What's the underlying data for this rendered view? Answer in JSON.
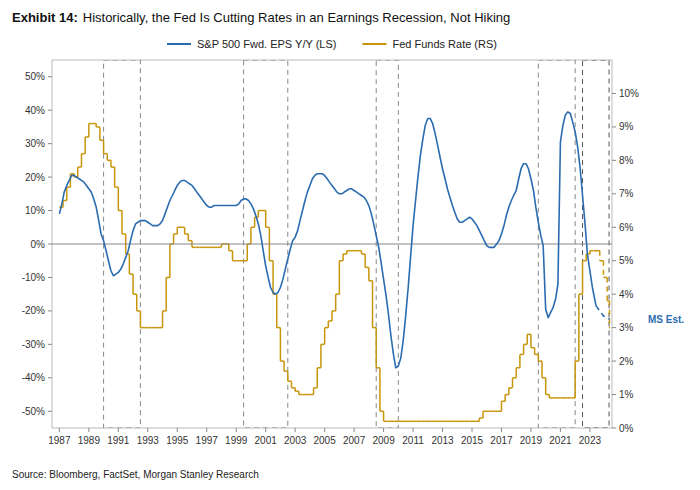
{
  "chart_data": {
    "type": "line",
    "title": "Exhibit 14:",
    "subtitle": "Historically, the Fed Is Cutting Rates in an Earnings Recession, Not Hiking",
    "source": "Source: Bloomberg, FactSet, Morgan Stanley Research",
    "annotations": [
      "MS Est."
    ],
    "legend": "top",
    "grid": false,
    "xlim": [
      1986.5,
      2024.5
    ],
    "xticks": [
      1987,
      1989,
      1991,
      1993,
      1995,
      1997,
      1999,
      2001,
      2003,
      2005,
      2007,
      2009,
      2011,
      2013,
      2015,
      2017,
      2019,
      2021,
      2023
    ],
    "ylim": [
      -0.55,
      0.55
    ],
    "yticks": [
      {
        "value": -0.5,
        "label": "-50%"
      },
      {
        "value": -0.4,
        "label": "-40%"
      },
      {
        "value": -0.3,
        "label": "-30%"
      },
      {
        "value": -0.2,
        "label": "-20%"
      },
      {
        "value": -0.1,
        "label": "-10%"
      },
      {
        "value": 0.0,
        "label": "0%"
      },
      {
        "value": 0.1,
        "label": "10%"
      },
      {
        "value": 0.2,
        "label": "20%"
      },
      {
        "value": 0.3,
        "label": "30%"
      },
      {
        "value": 0.4,
        "label": "40%"
      },
      {
        "value": 0.5,
        "label": "50%"
      }
    ],
    "y2lim": [
      0.0,
      0.11
    ],
    "y2ticks": [
      {
        "value": 0.0,
        "label": "0%"
      },
      {
        "value": 0.01,
        "label": "1%"
      },
      {
        "value": 0.02,
        "label": "2%"
      },
      {
        "value": 0.03,
        "label": "3%"
      },
      {
        "value": 0.04,
        "label": "4%"
      },
      {
        "value": 0.05,
        "label": "5%"
      },
      {
        "value": 0.06,
        "label": "6%"
      },
      {
        "value": 0.07,
        "label": "7%"
      },
      {
        "value": 0.08,
        "label": "8%"
      },
      {
        "value": 0.09,
        "label": "9%"
      },
      {
        "value": 0.1,
        "label": "10%"
      }
    ],
    "hline": {
      "value": 0.0,
      "color": "#888888"
    },
    "boxes": [
      {
        "from": 1990.0,
        "to": 1992.5,
        "color": "#888888",
        "line_style": "dashed"
      },
      {
        "from": 1999.5,
        "to": 2002.5,
        "color": "#888888",
        "line_style": "dashed"
      },
      {
        "from": 2008.5,
        "to": 2010.0,
        "color": "#888888",
        "line_style": "dashed"
      },
      {
        "from": 2019.5,
        "to": 2022.0,
        "color": "#888888",
        "line_style": "dashed"
      },
      {
        "from": 2022.5,
        "to": 2024.3,
        "color": "#555555",
        "line_style": "dashed"
      }
    ],
    "series": [
      {
        "name": "S&P 500 Fwd. EPS Y/Y (LS)",
        "type": "line",
        "axis": "y",
        "color": "#2b6cb0",
        "line_style": "solid",
        "x": [
          1987.0,
          1987.17,
          1987.33,
          1987.5,
          1987.67,
          1987.83,
          1988.0,
          1988.17,
          1988.33,
          1988.5,
          1988.67,
          1988.83,
          1989.0,
          1989.17,
          1989.33,
          1989.5,
          1989.67,
          1989.83,
          1990.0,
          1990.17,
          1990.33,
          1990.5,
          1990.67,
          1990.83,
          1991.0,
          1991.17,
          1991.33,
          1991.5,
          1991.67,
          1991.83,
          1992.0,
          1992.17,
          1992.33,
          1992.5,
          1992.67,
          1992.83,
          1993.0,
          1993.17,
          1993.33,
          1993.5,
          1993.67,
          1993.83,
          1994.0,
          1994.17,
          1994.33,
          1994.5,
          1994.67,
          1994.83,
          1995.0,
          1995.17,
          1995.33,
          1995.5,
          1995.67,
          1995.83,
          1996.0,
          1996.17,
          1996.33,
          1996.5,
          1996.67,
          1996.83,
          1997.0,
          1997.17,
          1997.33,
          1997.5,
          1997.67,
          1997.83,
          1998.0,
          1998.17,
          1998.33,
          1998.5,
          1998.67,
          1998.83,
          1999.0,
          1999.17,
          1999.33,
          1999.5,
          1999.67,
          1999.83,
          2000.0,
          2000.17,
          2000.33,
          2000.5,
          2000.67,
          2000.83,
          2001.0,
          2001.17,
          2001.33,
          2001.5,
          2001.67,
          2001.83,
          2002.0,
          2002.17,
          2002.33,
          2002.5,
          2002.67,
          2002.83,
          2003.0,
          2003.17,
          2003.33,
          2003.5,
          2003.67,
          2003.83,
          2004.0,
          2004.17,
          2004.33,
          2004.5,
          2004.67,
          2004.83,
          2005.0,
          2005.17,
          2005.33,
          2005.5,
          2005.67,
          2005.83,
          2006.0,
          2006.17,
          2006.33,
          2006.5,
          2006.67,
          2006.83,
          2007.0,
          2007.17,
          2007.33,
          2007.5,
          2007.67,
          2007.83,
          2008.0,
          2008.17,
          2008.33,
          2008.5,
          2008.67,
          2008.83,
          2009.0,
          2009.17,
          2009.33,
          2009.5,
          2009.67,
          2009.83,
          2010.0,
          2010.17,
          2010.33,
          2010.5,
          2010.67,
          2010.83,
          2011.0,
          2011.17,
          2011.33,
          2011.5,
          2011.67,
          2011.83,
          2012.0,
          2012.17,
          2012.33,
          2012.5,
          2012.67,
          2012.83,
          2013.0,
          2013.17,
          2013.33,
          2013.5,
          2013.67,
          2013.83,
          2014.0,
          2014.17,
          2014.33,
          2014.5,
          2014.67,
          2014.83,
          2015.0,
          2015.17,
          2015.33,
          2015.5,
          2015.67,
          2015.83,
          2016.0,
          2016.17,
          2016.33,
          2016.5,
          2016.67,
          2016.83,
          2017.0,
          2017.17,
          2017.33,
          2017.5,
          2017.67,
          2017.83,
          2018.0,
          2018.17,
          2018.33,
          2018.5,
          2018.67,
          2018.83,
          2019.0,
          2019.17,
          2019.33,
          2019.5,
          2019.67,
          2019.83,
          2020.0,
          2020.17,
          2020.33,
          2020.5,
          2020.67,
          2020.83,
          2021.0,
          2021.17,
          2021.33,
          2021.5,
          2021.67,
          2021.83,
          2022.0,
          2022.17,
          2022.33,
          2022.5,
          2022.67,
          2022.83,
          2023.0,
          2023.17,
          2023.42
        ],
        "values": [
          0.09,
          0.12,
          0.155,
          0.175,
          0.19,
          0.205,
          0.205,
          0.2,
          0.195,
          0.19,
          0.185,
          0.175,
          0.165,
          0.155,
          0.135,
          0.11,
          0.07,
          0.03,
          0.01,
          -0.02,
          -0.05,
          -0.08,
          -0.095,
          -0.09,
          -0.085,
          -0.075,
          -0.06,
          -0.04,
          -0.02,
          0.01,
          0.04,
          0.06,
          0.065,
          0.07,
          0.07,
          0.07,
          0.065,
          0.06,
          0.055,
          0.055,
          0.055,
          0.06,
          0.07,
          0.09,
          0.11,
          0.13,
          0.145,
          0.16,
          0.175,
          0.185,
          0.19,
          0.19,
          0.185,
          0.18,
          0.175,
          0.165,
          0.155,
          0.145,
          0.135,
          0.125,
          0.115,
          0.11,
          0.11,
          0.115,
          0.115,
          0.115,
          0.115,
          0.115,
          0.115,
          0.115,
          0.115,
          0.115,
          0.115,
          0.12,
          0.13,
          0.135,
          0.135,
          0.13,
          0.12,
          0.105,
          0.085,
          0.06,
          0.025,
          -0.02,
          -0.065,
          -0.1,
          -0.13,
          -0.145,
          -0.15,
          -0.145,
          -0.13,
          -0.105,
          -0.075,
          -0.045,
          -0.015,
          0.01,
          0.02,
          0.04,
          0.07,
          0.1,
          0.13,
          0.155,
          0.175,
          0.195,
          0.205,
          0.21,
          0.21,
          0.21,
          0.205,
          0.195,
          0.185,
          0.175,
          0.165,
          0.155,
          0.15,
          0.15,
          0.155,
          0.16,
          0.165,
          0.165,
          0.16,
          0.155,
          0.15,
          0.145,
          0.14,
          0.13,
          0.115,
          0.09,
          0.06,
          0.025,
          -0.01,
          -0.055,
          -0.105,
          -0.155,
          -0.21,
          -0.275,
          -0.33,
          -0.37,
          -0.365,
          -0.34,
          -0.29,
          -0.215,
          -0.13,
          -0.04,
          0.055,
          0.13,
          0.2,
          0.265,
          0.315,
          0.355,
          0.375,
          0.375,
          0.36,
          0.33,
          0.295,
          0.26,
          0.225,
          0.195,
          0.165,
          0.14,
          0.115,
          0.095,
          0.075,
          0.065,
          0.065,
          0.07,
          0.075,
          0.08,
          0.075,
          0.065,
          0.055,
          0.04,
          0.025,
          0.01,
          -0.005,
          -0.01,
          -0.01,
          -0.01,
          0.0,
          0.01,
          0.03,
          0.055,
          0.085,
          0.11,
          0.13,
          0.145,
          0.16,
          0.195,
          0.225,
          0.24,
          0.24,
          0.225,
          0.195,
          0.16,
          0.11,
          0.065,
          0.025,
          -0.005,
          -0.195,
          -0.22,
          -0.205,
          -0.19,
          -0.165,
          -0.12,
          0.305,
          0.355,
          0.385,
          0.395,
          0.39,
          0.365,
          0.335,
          0.29,
          0.23,
          0.145,
          0.06,
          -0.03,
          -0.08,
          -0.13,
          -0.185
        ]
      },
      {
        "type": "line",
        "axis": "y",
        "color": "#2b6cb0",
        "line_style": "dashed",
        "x": [
          2023.42,
          2023.67,
          2023.92,
          2024.17,
          2024.33
        ],
        "values": [
          -0.185,
          -0.2,
          -0.215,
          -0.22,
          -0.225
        ]
      },
      {
        "name": "Fed Funds Rate (RS)",
        "type": "step",
        "axis": "y2",
        "color": "#c8960c",
        "line_style": "solid",
        "x": [
          1987.0,
          1987.25,
          1987.5,
          1987.75,
          1988.0,
          1988.25,
          1988.5,
          1988.75,
          1989.0,
          1989.25,
          1989.5,
          1989.75,
          1990.0,
          1990.25,
          1990.5,
          1990.75,
          1991.0,
          1991.25,
          1991.5,
          1991.75,
          1992.0,
          1992.25,
          1992.5,
          1992.75,
          1993.0,
          1993.25,
          1993.5,
          1993.75,
          1994.0,
          1994.25,
          1994.5,
          1994.75,
          1995.0,
          1995.25,
          1995.5,
          1995.75,
          1996.0,
          1996.25,
          1996.5,
          1996.75,
          1997.0,
          1997.25,
          1997.5,
          1997.75,
          1998.0,
          1998.25,
          1998.5,
          1998.75,
          1999.0,
          1999.25,
          1999.5,
          1999.75,
          2000.0,
          2000.25,
          2000.5,
          2000.75,
          2001.0,
          2001.25,
          2001.5,
          2001.75,
          2002.0,
          2002.25,
          2002.5,
          2002.75,
          2003.0,
          2003.25,
          2003.5,
          2003.75,
          2004.0,
          2004.25,
          2004.5,
          2004.75,
          2005.0,
          2005.25,
          2005.5,
          2005.75,
          2006.0,
          2006.25,
          2006.5,
          2006.75,
          2007.0,
          2007.25,
          2007.5,
          2007.75,
          2008.0,
          2008.25,
          2008.5,
          2008.75,
          2009.0,
          2009.25,
          2009.5,
          2009.75,
          2010.0,
          2010.25,
          2010.5,
          2010.75,
          2011.0,
          2011.25,
          2011.5,
          2011.75,
          2012.0,
          2012.25,
          2012.5,
          2012.75,
          2013.0,
          2013.25,
          2013.5,
          2013.75,
          2014.0,
          2014.25,
          2014.5,
          2014.75,
          2015.0,
          2015.25,
          2015.5,
          2015.75,
          2016.0,
          2016.25,
          2016.5,
          2016.75,
          2017.0,
          2017.25,
          2017.5,
          2017.75,
          2018.0,
          2018.25,
          2018.5,
          2018.75,
          2019.0,
          2019.25,
          2019.5,
          2019.75,
          2020.0,
          2020.25,
          2020.5,
          2020.75,
          2021.0,
          2021.25,
          2021.5,
          2021.75,
          2022.0,
          2022.25,
          2022.5,
          2022.75,
          2023.0,
          2023.25,
          2023.42
        ],
        "values": [
          0.066,
          0.068,
          0.072,
          0.076,
          0.075,
          0.078,
          0.082,
          0.087,
          0.091,
          0.091,
          0.09,
          0.086,
          0.082,
          0.08,
          0.078,
          0.072,
          0.065,
          0.058,
          0.052,
          0.046,
          0.04,
          0.035,
          0.03,
          0.03,
          0.03,
          0.03,
          0.03,
          0.03,
          0.035,
          0.045,
          0.055,
          0.058,
          0.06,
          0.06,
          0.058,
          0.056,
          0.054,
          0.054,
          0.054,
          0.054,
          0.054,
          0.054,
          0.054,
          0.054,
          0.055,
          0.055,
          0.053,
          0.05,
          0.05,
          0.05,
          0.05,
          0.055,
          0.06,
          0.063,
          0.065,
          0.065,
          0.06,
          0.05,
          0.04,
          0.03,
          0.02,
          0.017,
          0.014,
          0.012,
          0.011,
          0.01,
          0.01,
          0.01,
          0.01,
          0.012,
          0.018,
          0.025,
          0.03,
          0.032,
          0.035,
          0.04,
          0.05,
          0.052,
          0.053,
          0.053,
          0.053,
          0.053,
          0.052,
          0.048,
          0.044,
          0.03,
          0.018,
          0.005,
          0.002,
          0.002,
          0.002,
          0.002,
          0.002,
          0.002,
          0.002,
          0.002,
          0.002,
          0.002,
          0.002,
          0.002,
          0.002,
          0.002,
          0.002,
          0.002,
          0.002,
          0.002,
          0.002,
          0.002,
          0.002,
          0.002,
          0.002,
          0.002,
          0.002,
          0.002,
          0.003,
          0.005,
          0.005,
          0.005,
          0.005,
          0.005,
          0.008,
          0.01,
          0.012,
          0.015,
          0.018,
          0.022,
          0.025,
          0.028,
          0.024,
          0.022,
          0.02,
          0.015,
          0.01,
          0.009,
          0.009,
          0.009,
          0.009,
          0.009,
          0.009,
          0.009,
          0.02,
          0.04,
          0.05,
          0.052,
          0.053,
          0.053,
          0.053
        ]
      },
      {
        "type": "step",
        "axis": "y2",
        "color": "#c8960c",
        "line_style": "dashed",
        "x": [
          2023.42,
          2023.67,
          2023.92,
          2024.17,
          2024.33
        ],
        "values": [
          0.053,
          0.05,
          0.045,
          0.038,
          0.03
        ]
      }
    ]
  }
}
